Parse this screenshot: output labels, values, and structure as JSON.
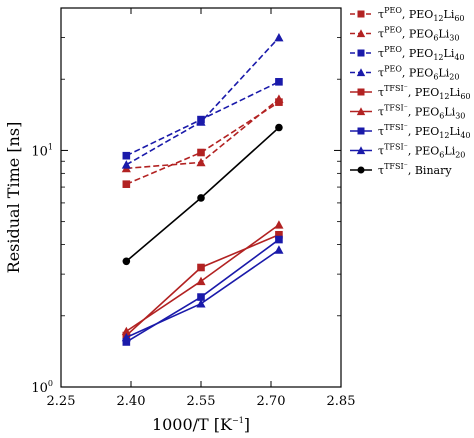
{
  "chart_data": {
    "type": "line",
    "xlabel": "1000/T [K",
    "xlabel_sup": "−1",
    "xlabel_end": "]",
    "ylabel": "Residual Time [ns]",
    "xlim": [
      2.25,
      2.85
    ],
    "ylim": [
      1,
      40
    ],
    "yscale": "log",
    "x_ticks": [
      {
        "value": 2.25,
        "label": "2.25"
      },
      {
        "value": 2.4,
        "label": "2.40"
      },
      {
        "value": 2.55,
        "label": "2.55"
      },
      {
        "value": 2.7,
        "label": "2.70"
      },
      {
        "value": 2.85,
        "label": "2.85"
      }
    ],
    "y_ticks": [
      {
        "value": 1,
        "base": "10",
        "exp": "0"
      },
      {
        "value": 10,
        "base": "10",
        "exp": "1"
      }
    ],
    "grid": false,
    "legend_position": "outside-right",
    "x": [
      2.39,
      2.55,
      2.717
    ],
    "series": [
      {
        "legend": {
          "tau": "τ",
          "sup": "PEO",
          "text": ", PEO",
          "sub1": "12",
          "mid": "Li",
          "sub2": "60"
        },
        "color": "#b22222",
        "dash": true,
        "marker": "square",
        "values": [
          7.2,
          9.8,
          16.0
        ]
      },
      {
        "legend": {
          "tau": "τ",
          "sup": "PEO",
          "text": ", PEO",
          "sub1": "6",
          "mid": "Li",
          "sub2": "30"
        },
        "color": "#b22222",
        "dash": true,
        "marker": "triangle",
        "values": [
          8.4,
          8.9,
          16.5
        ]
      },
      {
        "legend": {
          "tau": "τ",
          "sup": "PEO",
          "text": ", PEO",
          "sub1": "12",
          "mid": "Li",
          "sub2": "40"
        },
        "color": "#1a1aaa",
        "dash": true,
        "marker": "square",
        "values": [
          9.5,
          13.5,
          19.5
        ]
      },
      {
        "legend": {
          "tau": "τ",
          "sup": "PEO",
          "text": ", PEO",
          "sub1": "6",
          "mid": "Li",
          "sub2": "20"
        },
        "color": "#1a1aaa",
        "dash": true,
        "marker": "triangle",
        "values": [
          8.7,
          13.2,
          30.0
        ]
      },
      {
        "legend": {
          "tau": "τ",
          "sup": "TFSI⁻",
          "text": ", PEO",
          "sub1": "12",
          "mid": "Li",
          "sub2": "60"
        },
        "color": "#b22222",
        "dash": false,
        "marker": "square",
        "values": [
          1.65,
          3.2,
          4.4
        ]
      },
      {
        "legend": {
          "tau": "τ",
          "sup": "TFSI⁻",
          "text": ", PEO",
          "sub1": "6",
          "mid": "Li",
          "sub2": "30"
        },
        "color": "#b22222",
        "dash": false,
        "marker": "triangle",
        "values": [
          1.72,
          2.8,
          4.85
        ]
      },
      {
        "legend": {
          "tau": "τ",
          "sup": "TFSI⁻",
          "text": ", PEO",
          "sub1": "12",
          "mid": "Li",
          "sub2": "40"
        },
        "color": "#1a1aaa",
        "dash": false,
        "marker": "square",
        "values": [
          1.55,
          2.4,
          4.2
        ]
      },
      {
        "legend": {
          "tau": "τ",
          "sup": "TFSI⁻",
          "text": ", PEO",
          "sub1": "6",
          "mid": "Li",
          "sub2": "20"
        },
        "color": "#1a1aaa",
        "dash": false,
        "marker": "triangle",
        "values": [
          1.62,
          2.25,
          3.8
        ]
      },
      {
        "legend": {
          "tau": "τ",
          "sup": "TFSI⁻",
          "text": ", Binary",
          "sub1": "",
          "mid": "",
          "sub2": ""
        },
        "color": "#000000",
        "dash": false,
        "marker": "circle",
        "values": [
          3.4,
          6.3,
          12.5
        ]
      }
    ]
  }
}
